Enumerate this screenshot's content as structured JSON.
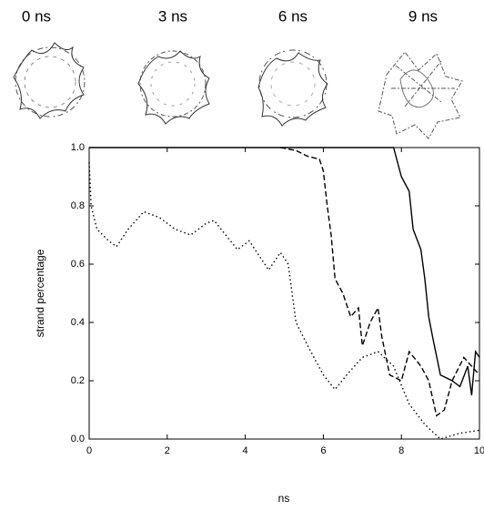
{
  "chart_data": {
    "type": "line",
    "panel_labels": [
      "0 ns",
      "3 ns",
      "6 ns",
      "9 ns"
    ],
    "xlabel": "ns",
    "ylabel": "strand percentage",
    "xlim": [
      0,
      10
    ],
    "ylim": [
      0,
      1
    ],
    "xticks": [
      0,
      2,
      4,
      6,
      8,
      10
    ],
    "yticks": [
      {
        "value": 0,
        "label": "0.0"
      },
      {
        "value": 0.2,
        "label": "0.2"
      },
      {
        "value": 0.4,
        "label": "0.4"
      },
      {
        "value": 0.6,
        "label": "0.6"
      },
      {
        "value": 0.8,
        "label": "0.8"
      },
      {
        "value": 1,
        "label": "1.0"
      }
    ],
    "series": [
      {
        "color": "#000000",
        "dash": "dotted",
        "x": [
          0,
          0.05,
          0.2,
          0.5,
          0.7,
          1,
          1.4,
          1.8,
          2.2,
          2.6,
          3.0,
          3.2,
          3.5,
          3.8,
          4.1,
          4.3,
          4.6,
          4.9,
          5.1,
          5.3,
          5.6,
          6.0,
          6.3,
          6.6,
          7.0,
          7.4,
          7.8,
          8.2,
          8.6,
          9.0,
          9.5,
          10
        ],
        "values": [
          0.95,
          0.8,
          0.72,
          0.68,
          0.66,
          0.72,
          0.78,
          0.76,
          0.72,
          0.7,
          0.74,
          0.75,
          0.7,
          0.65,
          0.68,
          0.64,
          0.58,
          0.64,
          0.6,
          0.4,
          0.32,
          0.22,
          0.17,
          0.22,
          0.28,
          0.3,
          0.25,
          0.12,
          0.05,
          0.0,
          0.02,
          0.03
        ]
      },
      {
        "color": "#000000",
        "dash": "dashed",
        "x": [
          4.9,
          5.3,
          5.6,
          5.9,
          6.0,
          6.1,
          6.2,
          6.3,
          6.5,
          6.7,
          6.9,
          7.0,
          7.2,
          7.4,
          7.5,
          7.7,
          8.0,
          8.2,
          8.5,
          8.7,
          8.9,
          9.1,
          9.3,
          9.6,
          10
        ],
        "values": [
          1.0,
          0.99,
          0.97,
          0.96,
          0.92,
          0.8,
          0.7,
          0.55,
          0.5,
          0.42,
          0.45,
          0.32,
          0.4,
          0.45,
          0.35,
          0.22,
          0.2,
          0.3,
          0.25,
          0.2,
          0.08,
          0.1,
          0.2,
          0.28,
          0.22
        ]
      },
      {
        "color": "#000000",
        "dash": "solid",
        "x": [
          0,
          7.8,
          8.0,
          8.2,
          8.3,
          8.5,
          8.6,
          8.7,
          8.8,
          9.0,
          9.3,
          9.5,
          9.7,
          9.8,
          9.9,
          10
        ],
        "values": [
          1.0,
          1.0,
          0.9,
          0.85,
          0.72,
          0.65,
          0.55,
          0.42,
          0.35,
          0.22,
          0.2,
          0.18,
          0.25,
          0.15,
          0.3,
          0.28
        ]
      }
    ]
  }
}
